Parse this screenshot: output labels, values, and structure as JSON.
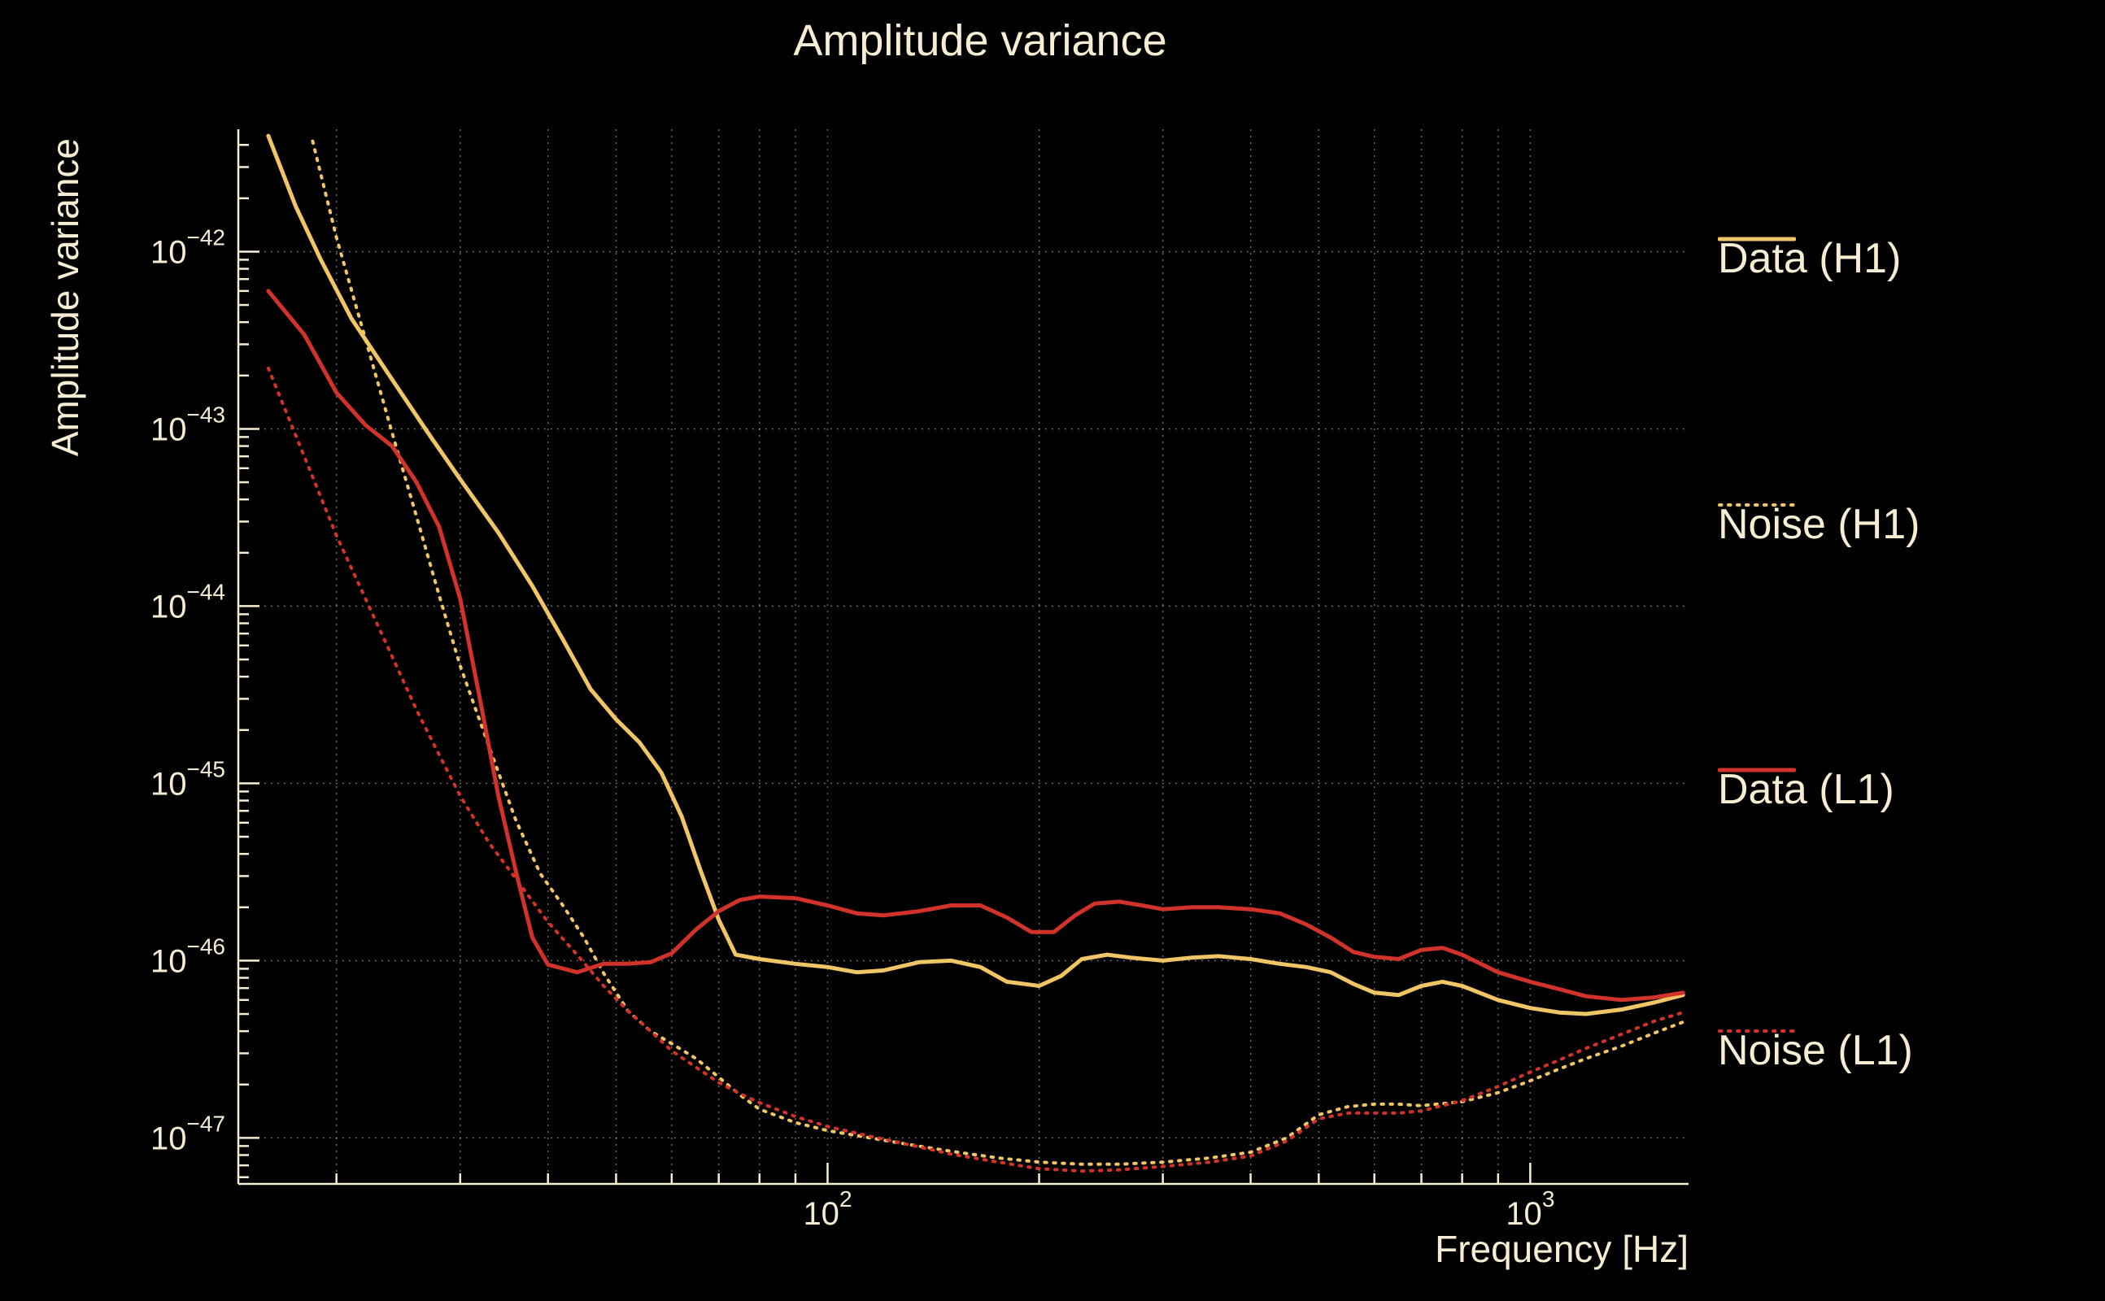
{
  "colors": {
    "background": "#000000",
    "text": "#f7edd3",
    "grid": "#d9d0bf",
    "gold": "#f0c566",
    "red": "#d1332a"
  },
  "chart_data": {
    "type": "line",
    "title": "Amplitude variance",
    "xlabel": "Frequency [Hz]",
    "ylabel": "Amplitude variance",
    "x_scale": "log",
    "y_scale": "log",
    "grid": true,
    "xlim": [
      14.5,
      1680
    ],
    "ylim": [
      5.5e-48,
      4.9e-42
    ],
    "x_major_ticks": [
      100,
      1000
    ],
    "y_tick_exponents": [
      -42,
      -43,
      -44,
      -45,
      -46,
      -47
    ],
    "series": [
      {
        "name": "Data (H1)",
        "color": "#f0c566",
        "style": "solid",
        "points": [
          [
            16,
            4.5e-42
          ],
          [
            17.5,
            1.8e-42
          ],
          [
            19,
            9e-43
          ],
          [
            21,
            4.2e-43
          ],
          [
            24,
            1.9e-43
          ],
          [
            27,
            9.5e-44
          ],
          [
            30,
            5.2e-44
          ],
          [
            34,
            2.6e-44
          ],
          [
            38,
            1.3e-44
          ],
          [
            42,
            6.5e-45
          ],
          [
            46,
            3.4e-45
          ],
          [
            50,
            2.3e-45
          ],
          [
            54,
            1.7e-45
          ],
          [
            58,
            1.15e-45
          ],
          [
            62,
            6.5e-46
          ],
          [
            66,
            3.2e-46
          ],
          [
            70,
            1.7e-46
          ],
          [
            74,
            1.08e-46
          ],
          [
            80,
            1.02e-46
          ],
          [
            90,
            9.6e-47
          ],
          [
            100,
            9.2e-47
          ],
          [
            110,
            8.6e-47
          ],
          [
            120,
            8.8e-47
          ],
          [
            135,
            9.8e-47
          ],
          [
            150,
            1e-46
          ],
          [
            165,
            9.2e-47
          ],
          [
            180,
            7.6e-47
          ],
          [
            200,
            7.2e-47
          ],
          [
            215,
            8.2e-47
          ],
          [
            230,
            1.02e-46
          ],
          [
            250,
            1.08e-46
          ],
          [
            270,
            1.04e-46
          ],
          [
            300,
            1e-46
          ],
          [
            330,
            1.04e-46
          ],
          [
            360,
            1.06e-46
          ],
          [
            400,
            1.02e-46
          ],
          [
            440,
            9.6e-47
          ],
          [
            480,
            9.2e-47
          ],
          [
            520,
            8.6e-47
          ],
          [
            560,
            7.4e-47
          ],
          [
            600,
            6.6e-47
          ],
          [
            650,
            6.4e-47
          ],
          [
            700,
            7.2e-47
          ],
          [
            750,
            7.6e-47
          ],
          [
            800,
            7.2e-47
          ],
          [
            900,
            6e-47
          ],
          [
            1000,
            5.4e-47
          ],
          [
            1100,
            5.1e-47
          ],
          [
            1200,
            5e-47
          ],
          [
            1350,
            5.3e-47
          ],
          [
            1500,
            5.8e-47
          ],
          [
            1650,
            6.4e-47
          ]
        ]
      },
      {
        "name": "Noise (H1)",
        "color": "#f0c566",
        "style": "dotted",
        "points": [
          [
            18.5,
            4.2e-42
          ],
          [
            20,
            1.2e-42
          ],
          [
            22,
            3.2e-43
          ],
          [
            24,
            9.5e-44
          ],
          [
            26,
            3.2e-44
          ],
          [
            28,
            1.15e-44
          ],
          [
            30,
            4.6e-45
          ],
          [
            33,
            1.6e-45
          ],
          [
            36,
            6.2e-46
          ],
          [
            39,
            3.1e-46
          ],
          [
            42,
            2.05e-46
          ],
          [
            45,
            1.35e-46
          ],
          [
            48,
            8.5e-47
          ],
          [
            52,
            5.2e-47
          ],
          [
            56,
            4e-47
          ],
          [
            60,
            3.4e-47
          ],
          [
            65,
            2.8e-47
          ],
          [
            70,
            2.2e-47
          ],
          [
            75,
            1.75e-47
          ],
          [
            80,
            1.45e-47
          ],
          [
            90,
            1.22e-47
          ],
          [
            100,
            1.1e-47
          ],
          [
            115,
            1e-47
          ],
          [
            130,
            9.2e-48
          ],
          [
            150,
            8.4e-48
          ],
          [
            175,
            7.7e-48
          ],
          [
            200,
            7.3e-48
          ],
          [
            230,
            7.1e-48
          ],
          [
            260,
            7.1e-48
          ],
          [
            300,
            7.3e-48
          ],
          [
            350,
            7.7e-48
          ],
          [
            400,
            8.3e-48
          ],
          [
            450,
            1e-47
          ],
          [
            500,
            1.35e-47
          ],
          [
            550,
            1.5e-47
          ],
          [
            600,
            1.55e-47
          ],
          [
            650,
            1.55e-47
          ],
          [
            700,
            1.52e-47
          ],
          [
            800,
            1.6e-47
          ],
          [
            900,
            1.8e-47
          ],
          [
            1000,
            2.1e-47
          ],
          [
            1100,
            2.45e-47
          ],
          [
            1200,
            2.8e-47
          ],
          [
            1350,
            3.3e-47
          ],
          [
            1500,
            3.9e-47
          ],
          [
            1650,
            4.5e-47
          ]
        ]
      },
      {
        "name": "Data (L1)",
        "color": "#d1332a",
        "style": "solid",
        "points": [
          [
            16,
            6e-43
          ],
          [
            18,
            3.4e-43
          ],
          [
            20,
            1.6e-43
          ],
          [
            22,
            1.05e-43
          ],
          [
            24,
            8e-44
          ],
          [
            26,
            5e-44
          ],
          [
            28,
            2.8e-44
          ],
          [
            30,
            1.1e-44
          ],
          [
            32,
            3e-45
          ],
          [
            34,
            8.5e-46
          ],
          [
            36,
            3.2e-46
          ],
          [
            38,
            1.35e-46
          ],
          [
            40,
            9.5e-47
          ],
          [
            44,
            8.6e-47
          ],
          [
            48,
            9.6e-47
          ],
          [
            52,
            9.6e-47
          ],
          [
            56,
            9.8e-47
          ],
          [
            60,
            1.1e-46
          ],
          [
            65,
            1.5e-46
          ],
          [
            70,
            1.9e-46
          ],
          [
            75,
            2.2e-46
          ],
          [
            80,
            2.3e-46
          ],
          [
            90,
            2.25e-46
          ],
          [
            100,
            2.05e-46
          ],
          [
            110,
            1.85e-46
          ],
          [
            120,
            1.8e-46
          ],
          [
            135,
            1.9e-46
          ],
          [
            150,
            2.05e-46
          ],
          [
            165,
            2.05e-46
          ],
          [
            180,
            1.75e-46
          ],
          [
            195,
            1.45e-46
          ],
          [
            210,
            1.45e-46
          ],
          [
            225,
            1.8e-46
          ],
          [
            240,
            2.1e-46
          ],
          [
            260,
            2.15e-46
          ],
          [
            280,
            2.05e-46
          ],
          [
            300,
            1.95e-46
          ],
          [
            330,
            2e-46
          ],
          [
            360,
            2e-46
          ],
          [
            400,
            1.95e-46
          ],
          [
            440,
            1.85e-46
          ],
          [
            480,
            1.6e-46
          ],
          [
            520,
            1.35e-46
          ],
          [
            560,
            1.12e-46
          ],
          [
            600,
            1.05e-46
          ],
          [
            650,
            1.02e-46
          ],
          [
            700,
            1.15e-46
          ],
          [
            750,
            1.18e-46
          ],
          [
            800,
            1.08e-46
          ],
          [
            900,
            8.6e-47
          ],
          [
            1000,
            7.6e-47
          ],
          [
            1100,
            6.9e-47
          ],
          [
            1200,
            6.3e-47
          ],
          [
            1350,
            6e-47
          ],
          [
            1500,
            6.2e-47
          ],
          [
            1650,
            6.6e-47
          ]
        ]
      },
      {
        "name": "Noise (L1)",
        "color": "#d1332a",
        "style": "dotted",
        "points": [
          [
            16,
            2.2e-43
          ],
          [
            18,
            7e-44
          ],
          [
            20,
            2.5e-44
          ],
          [
            22,
            1.1e-44
          ],
          [
            24,
            5.2e-45
          ],
          [
            26,
            2.6e-45
          ],
          [
            28,
            1.45e-45
          ],
          [
            30,
            8.5e-46
          ],
          [
            33,
            4.6e-46
          ],
          [
            36,
            2.9e-46
          ],
          [
            40,
            1.65e-46
          ],
          [
            44,
            1.08e-46
          ],
          [
            48,
            7.2e-47
          ],
          [
            52,
            5.2e-47
          ],
          [
            56,
            4e-47
          ],
          [
            60,
            3.1e-47
          ],
          [
            65,
            2.5e-47
          ],
          [
            70,
            2.05e-47
          ],
          [
            75,
            1.78e-47
          ],
          [
            80,
            1.58e-47
          ],
          [
            90,
            1.32e-47
          ],
          [
            100,
            1.16e-47
          ],
          [
            115,
            1.02e-47
          ],
          [
            130,
            9.2e-48
          ],
          [
            150,
            8.1e-48
          ],
          [
            175,
            7.3e-48
          ],
          [
            200,
            6.7e-48
          ],
          [
            230,
            6.5e-48
          ],
          [
            260,
            6.6e-48
          ],
          [
            300,
            6.9e-48
          ],
          [
            350,
            7.3e-48
          ],
          [
            400,
            7.9e-48
          ],
          [
            450,
            9.6e-48
          ],
          [
            500,
            1.28e-47
          ],
          [
            550,
            1.38e-47
          ],
          [
            600,
            1.38e-47
          ],
          [
            650,
            1.38e-47
          ],
          [
            700,
            1.42e-47
          ],
          [
            800,
            1.62e-47
          ],
          [
            900,
            1.95e-47
          ],
          [
            1000,
            2.35e-47
          ],
          [
            1100,
            2.75e-47
          ],
          [
            1200,
            3.2e-47
          ],
          [
            1350,
            3.85e-47
          ],
          [
            1500,
            4.55e-47
          ],
          [
            1650,
            5.1e-47
          ]
        ]
      }
    ]
  },
  "legend": {
    "items": [
      {
        "label": "Data (H1)",
        "color": "#f0c566",
        "style": "solid"
      },
      {
        "label": "Noise (H1)",
        "color": "#f0c566",
        "style": "dotted"
      },
      {
        "label": "Data (L1)",
        "color": "#d1332a",
        "style": "solid"
      },
      {
        "label": "Noise (L1)",
        "color": "#d1332a",
        "style": "dotted"
      }
    ]
  }
}
